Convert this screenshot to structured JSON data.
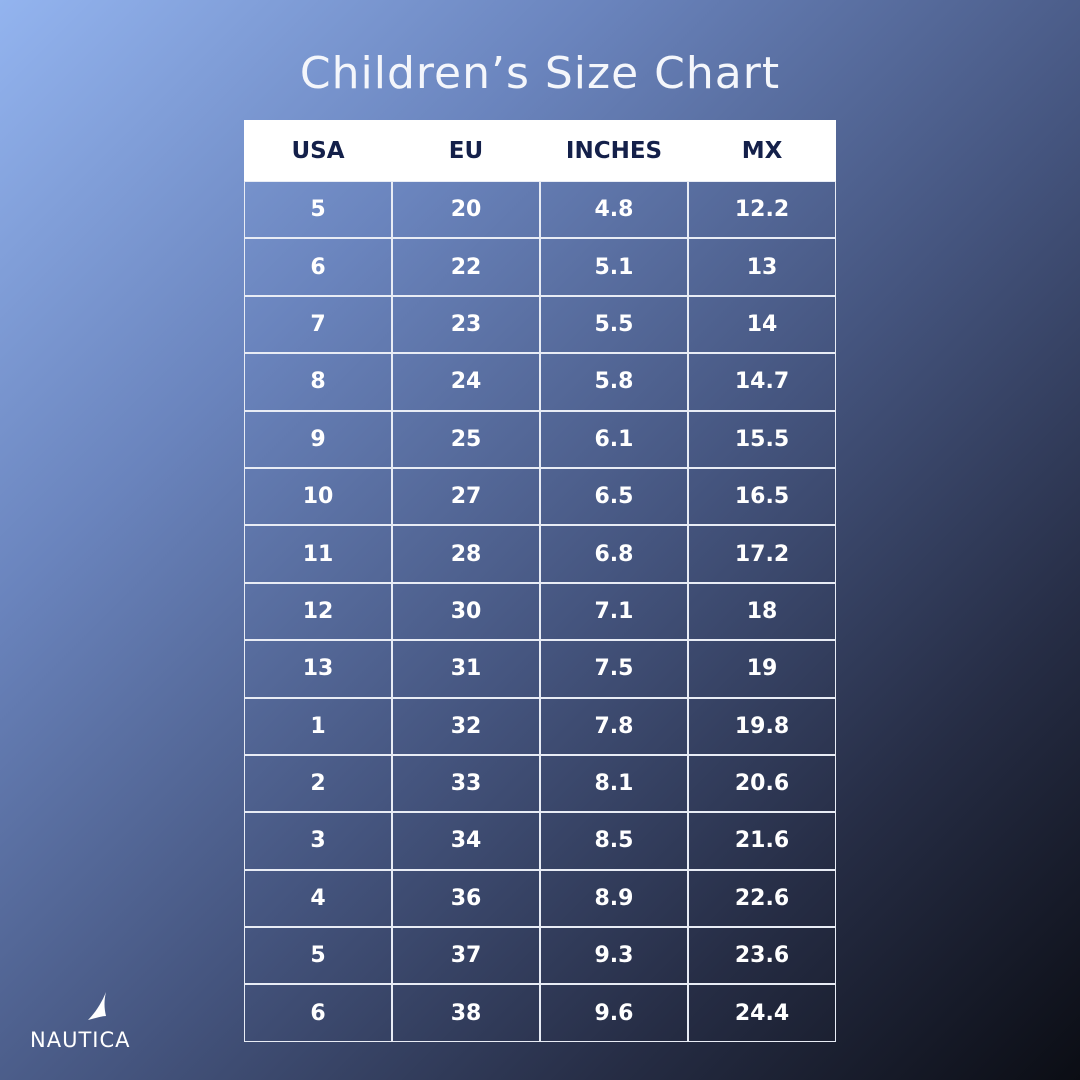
{
  "title": "Children’s Size Chart",
  "table": {
    "header": [
      "USA",
      "EU",
      "INCHES",
      "MX"
    ],
    "rows": [
      [
        "5",
        "20",
        "4.8",
        "12.2"
      ],
      [
        "6",
        "22",
        "5.1",
        "13"
      ],
      [
        "7",
        "23",
        "5.5",
        "14"
      ],
      [
        "8",
        "24",
        "5.8",
        "14.7"
      ],
      [
        "9",
        "25",
        "6.1",
        "15.5"
      ],
      [
        "10",
        "27",
        "6.5",
        "16.5"
      ],
      [
        "11",
        "28",
        "6.8",
        "17.2"
      ],
      [
        "12",
        "30",
        "7.1",
        "18"
      ],
      [
        "13",
        "31",
        "7.5",
        "19"
      ],
      [
        "1",
        "32",
        "7.8",
        "19.8"
      ],
      [
        "2",
        "33",
        "8.1",
        "20.6"
      ],
      [
        "3",
        "34",
        "8.5",
        "21.6"
      ],
      [
        "4",
        "36",
        "8.9",
        "22.6"
      ],
      [
        "5",
        "37",
        "9.3",
        "23.6"
      ],
      [
        "6",
        "38",
        "9.6",
        "24.4"
      ]
    ]
  },
  "logo": "NAUTICA"
}
